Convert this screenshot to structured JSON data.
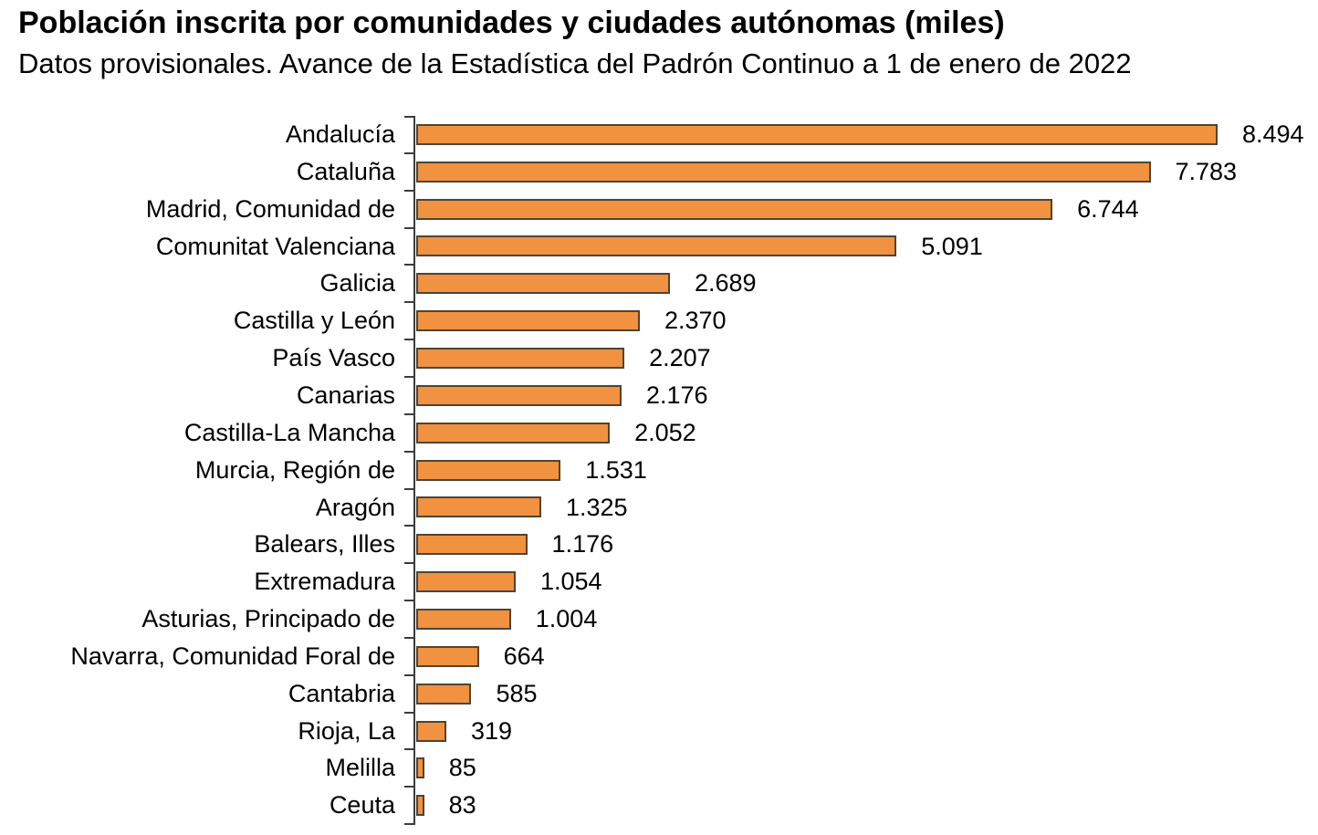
{
  "header": {
    "title": "Población inscrita por comunidades y ciudades autónomas (miles)",
    "subtitle": "Datos provisionales. Avance de la Estadística del Padrón Continuo a 1 de enero de 2022"
  },
  "chart_data": {
    "type": "bar",
    "orientation": "horizontal",
    "title": "Población inscrita por comunidades y ciudades autónomas (miles)",
    "subtitle": "Datos provisionales. Avance de la Estadística del Padrón Continuo a 1 de enero de 2022",
    "unit": "miles",
    "categories": [
      "Andalucía",
      "Cataluña",
      "Madrid, Comunidad de",
      "Comunitat Valenciana",
      "Galicia",
      "Castilla y León",
      "País Vasco",
      "Canarias",
      "Castilla-La Mancha",
      "Murcia, Región de",
      "Aragón",
      "Balears, Illes",
      "Extremadura",
      "Asturias, Principado de",
      "Navarra, Comunidad Foral de",
      "Cantabria",
      "Rioja, La",
      "Melilla",
      "Ceuta"
    ],
    "values": [
      8494,
      7783,
      6744,
      5091,
      2689,
      2370,
      2207,
      2176,
      2052,
      1531,
      1325,
      1176,
      1054,
      1004,
      664,
      585,
      319,
      85,
      83
    ],
    "value_labels": [
      "8.494",
      "7.783",
      "6.744",
      "5.091",
      "2.689",
      "2.370",
      "2.207",
      "2.176",
      "2.052",
      "1.531",
      "1.325",
      "1.176",
      "1.054",
      "1.004",
      "664",
      "585",
      "319",
      "85",
      "83"
    ],
    "xlim": [
      0,
      8494
    ],
    "grid": false,
    "legend": false,
    "bar_color": "#F0923F",
    "bar_border_color": "#4E4434",
    "axis_color": "#3C3C3C",
    "text_color": "#000000"
  }
}
